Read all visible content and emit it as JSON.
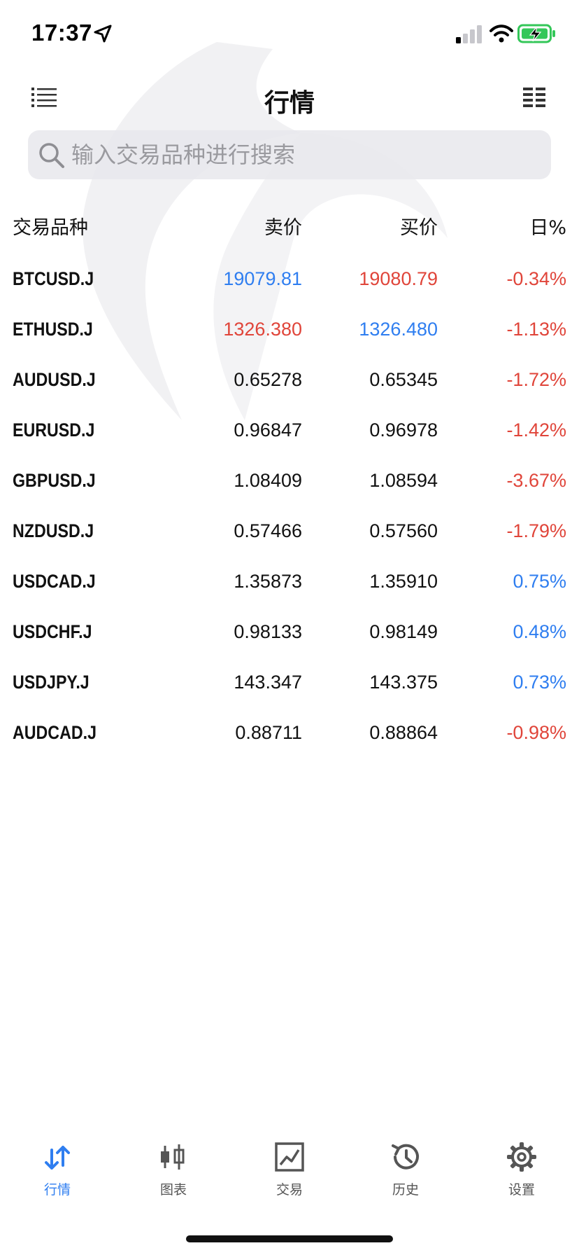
{
  "status_bar": {
    "time": "17:37"
  },
  "header": {
    "title": "行情"
  },
  "search": {
    "placeholder": "输入交易品种进行搜索"
  },
  "table": {
    "columns": {
      "symbol": "交易品种",
      "bid": "卖价",
      "ask": "买价",
      "change": "日%"
    },
    "rows": [
      {
        "symbol": "BTCUSD.J",
        "bid": "19079.81",
        "ask": "19080.79",
        "change": "-0.34%"
      },
      {
        "symbol": "ETHUSD.J",
        "bid": "1326.380",
        "ask": "1326.480",
        "change": "-1.13%"
      },
      {
        "symbol": "AUDUSD.J",
        "bid": "0.65278",
        "ask": "0.65345",
        "change": "-1.72%"
      },
      {
        "symbol": "EURUSD.J",
        "bid": "0.96847",
        "ask": "0.96978",
        "change": "-1.42%"
      },
      {
        "symbol": "GBPUSD.J",
        "bid": "1.08409",
        "ask": "1.08594",
        "change": "-3.67%"
      },
      {
        "symbol": "NZDUSD.J",
        "bid": "0.57466",
        "ask": "0.57560",
        "change": "-1.79%"
      },
      {
        "symbol": "USDCAD.J",
        "bid": "1.35873",
        "ask": "1.35910",
        "change": "0.75%"
      },
      {
        "symbol": "USDCHF.J",
        "bid": "0.98133",
        "ask": "0.98149",
        "change": "0.48%"
      },
      {
        "symbol": "USDJPY.J",
        "bid": "143.347",
        "ask": "143.375",
        "change": "0.73%"
      },
      {
        "symbol": "AUDCAD.J",
        "bid": "0.88711",
        "ask": "0.88864",
        "change": "-0.98%"
      }
    ]
  },
  "tabs": [
    {
      "label": "行情",
      "icon": "arrows-up-down-icon",
      "active": true
    },
    {
      "label": "图表",
      "icon": "candlestick-icon",
      "active": false
    },
    {
      "label": "交易",
      "icon": "line-chart-icon",
      "active": false
    },
    {
      "label": "历史",
      "icon": "history-icon",
      "active": false
    },
    {
      "label": "设置",
      "icon": "gear-icon",
      "active": false
    }
  ],
  "colors": {
    "up_blue": "#2f7ef0",
    "down_red": "#e0453a",
    "text_default": "#111111",
    "tab_active": "#2f7ef0",
    "tab_inactive": "#555555",
    "search_bg": "#e8e8ec"
  }
}
